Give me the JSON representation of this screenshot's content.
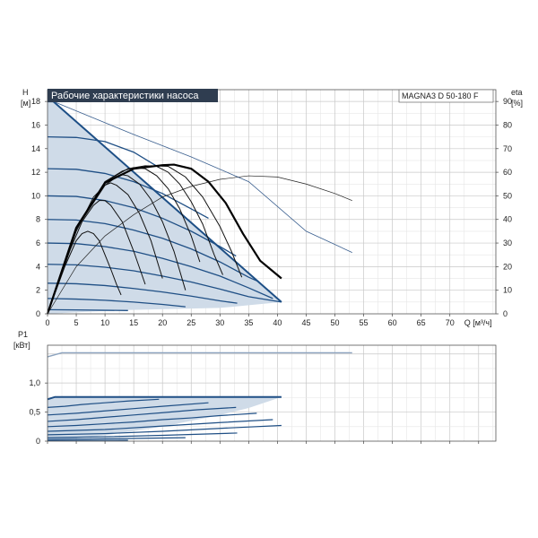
{
  "chart_data": [
    {
      "type": "line",
      "panel": "head",
      "title": "Рабочие характеристики насоса",
      "model": "MAGNA3 D 50-180 F",
      "ylabel": "H",
      "yunit": "[м]",
      "y2label": "eta",
      "y2unit": "[%]",
      "xlabel": "Q [м³/ч]",
      "xlim": [
        0,
        78
      ],
      "ylim": [
        0,
        19
      ],
      "y2lim": [
        0,
        95
      ],
      "xticks": [
        0,
        5,
        10,
        15,
        20,
        25,
        30,
        35,
        40,
        45,
        50,
        55,
        60,
        65,
        70
      ],
      "xtick_labels": [
        "0",
        "5",
        "10",
        "15",
        "20",
        "25",
        "30",
        "35",
        "40",
        "45",
        "50",
        "55",
        "60",
        "65",
        "70"
      ],
      "xunit_label": "Q [м³/ч]",
      "yticks": [
        0,
        2,
        4,
        6,
        8,
        10,
        12,
        14,
        16,
        18
      ],
      "ytick_labels": [
        "0",
        "2",
        "4",
        "6",
        "8",
        "10",
        "12",
        "14",
        "16",
        "18"
      ],
      "y2ticks": [
        0,
        10,
        20,
        30,
        40,
        50,
        60,
        70,
        80,
        90
      ],
      "y2tick_labels": [
        "0",
        "10",
        "20",
        "30",
        "40",
        "50",
        "60",
        "70",
        "80",
        "90"
      ],
      "grid": true,
      "envelope": [
        [
          0,
          18
        ],
        [
          1,
          18
        ],
        [
          40.7,
          1.0
        ],
        [
          30,
          0.5
        ],
        [
          12,
          0.3
        ],
        [
          0,
          0
        ]
      ],
      "series_pump_curves": [
        {
          "values": [
            [
              0,
              18
            ],
            [
              1,
              18
            ],
            [
              40.7,
              1.0
            ]
          ]
        },
        {
          "values": [
            [
              0,
              15
            ],
            [
              5,
              14.95
            ],
            [
              10,
              14.6
            ],
            [
              15,
              13.7
            ],
            [
              19.4,
              12.4
            ]
          ]
        },
        {
          "values": [
            [
              0,
              12.3
            ],
            [
              5,
              12.25
            ],
            [
              10,
              11.9
            ],
            [
              15,
              11.2
            ],
            [
              20,
              10.2
            ],
            [
              25,
              8.9
            ],
            [
              28,
              8.1
            ]
          ]
        },
        {
          "values": [
            [
              0,
              10.0
            ],
            [
              5,
              9.95
            ],
            [
              10,
              9.6
            ],
            [
              15,
              9.0
            ],
            [
              20,
              8.1
            ],
            [
              25,
              7.0
            ],
            [
              30,
              5.7
            ],
            [
              32.8,
              4.9
            ]
          ]
        },
        {
          "values": [
            [
              0,
              8.0
            ],
            [
              5,
              7.95
            ],
            [
              10,
              7.65
            ],
            [
              15,
              7.1
            ],
            [
              20,
              6.4
            ],
            [
              25,
              5.5
            ],
            [
              30,
              4.4
            ],
            [
              35,
              3.1
            ],
            [
              36.4,
              2.8
            ]
          ]
        },
        {
          "values": [
            [
              0,
              6.0
            ],
            [
              5,
              5.95
            ],
            [
              10,
              5.7
            ],
            [
              15,
              5.3
            ],
            [
              20,
              4.7
            ],
            [
              25,
              4.0
            ],
            [
              30,
              3.2
            ],
            [
              35,
              2.2
            ],
            [
              39.2,
              1.3
            ]
          ]
        },
        {
          "values": [
            [
              0,
              4.2
            ],
            [
              5,
              4.15
            ],
            [
              10,
              3.95
            ],
            [
              15,
              3.65
            ],
            [
              20,
              3.2
            ],
            [
              25,
              2.7
            ],
            [
              30,
              2.1
            ],
            [
              35,
              1.45
            ],
            [
              40.7,
              1.0
            ]
          ]
        },
        {
          "values": [
            [
              0,
              2.6
            ],
            [
              5,
              2.55
            ],
            [
              10,
              2.4
            ],
            [
              15,
              2.15
            ],
            [
              20,
              1.85
            ],
            [
              25,
              1.5
            ],
            [
              30,
              1.1
            ],
            [
              33,
              0.9
            ]
          ]
        },
        {
          "values": [
            [
              0,
              1.3
            ],
            [
              5,
              1.25
            ],
            [
              10,
              1.15
            ],
            [
              15,
              1.0
            ],
            [
              20,
              0.8
            ],
            [
              24,
              0.6
            ]
          ]
        },
        {
          "values": [
            [
              0,
              0.35
            ],
            [
              5,
              0.33
            ],
            [
              10,
              0.3
            ],
            [
              14,
              0.28
            ]
          ]
        }
      ],
      "series_efficiency": [
        {
          "values": [
            [
              0,
              0
            ],
            [
              3,
              4
            ],
            [
              5,
              6.2
            ],
            [
              6,
              6.8
            ],
            [
              7,
              7.0
            ],
            [
              8,
              6.8
            ],
            [
              9,
              6.2
            ],
            [
              10,
              5.0
            ],
            [
              11,
              3.8
            ],
            [
              12,
              2.5
            ],
            [
              12.8,
              1.6
            ]
          ]
        },
        {
          "values": [
            [
              0,
              0
            ],
            [
              4,
              5.5
            ],
            [
              6,
              7.8
            ],
            [
              8,
              9.2
            ],
            [
              9,
              9.6
            ],
            [
              10,
              9.6
            ],
            [
              11,
              9.2
            ],
            [
              13,
              7.8
            ],
            [
              15,
              5.3
            ],
            [
              17,
              2.5
            ]
          ]
        },
        {
          "values": [
            [
              0,
              0
            ],
            [
              5,
              7.0
            ],
            [
              8,
              9.9
            ],
            [
              10,
              10.9
            ],
            [
              11,
              11.1
            ],
            [
              12,
              10.9
            ],
            [
              14,
              10.1
            ],
            [
              16,
              8.5
            ],
            [
              18,
              6.2
            ],
            [
              20,
              3.0
            ]
          ]
        },
        {
          "values": [
            [
              0,
              0
            ],
            [
              5,
              7.2
            ],
            [
              10,
              10.9
            ],
            [
              12,
              11.6
            ],
            [
              13,
              11.8
            ],
            [
              14,
              11.7
            ],
            [
              16,
              11.0
            ],
            [
              18,
              9.7
            ],
            [
              20,
              7.8
            ],
            [
              22,
              5.3
            ],
            [
              24,
              2.0
            ]
          ]
        },
        {
          "values": [
            [
              0,
              0
            ],
            [
              5,
              7.3
            ],
            [
              10,
              11.2
            ],
            [
              13,
              12.1
            ],
            [
              15,
              12.4
            ],
            [
              17,
              12.3
            ],
            [
              19,
              11.7
            ],
            [
              21,
              10.6
            ],
            [
              23,
              8.9
            ],
            [
              25,
              6.6
            ],
            [
              26.5,
              4.4
            ]
          ]
        },
        {
          "values": [
            [
              0,
              0
            ],
            [
              5,
              7.3
            ],
            [
              10,
              11.2
            ],
            [
              14,
              12.3
            ],
            [
              17,
              12.55
            ],
            [
              19,
              12.5
            ],
            [
              21,
              12.0
            ],
            [
              23,
              11.0
            ],
            [
              25,
              9.5
            ],
            [
              27,
              7.6
            ],
            [
              29,
              5.0
            ],
            [
              30.5,
              3.3
            ]
          ]
        },
        {
          "values": [
            [
              0,
              0
            ],
            [
              5,
              7.3
            ],
            [
              10,
              11.2
            ],
            [
              15,
              12.3
            ],
            [
              18,
              12.55
            ],
            [
              21,
              12.5
            ],
            [
              24,
              11.6
            ],
            [
              27,
              9.9
            ],
            [
              30,
              7.4
            ],
            [
              32,
              5.3
            ],
            [
              33.8,
              3.1
            ]
          ]
        }
      ],
      "series_efficiency_max": {
        "values": [
          [
            0,
            0
          ],
          [
            5,
            7.3
          ],
          [
            10,
            11.1
          ],
          [
            15,
            12.3
          ],
          [
            20,
            12.6
          ],
          [
            22,
            12.65
          ],
          [
            25,
            12.3
          ],
          [
            28,
            11.2
          ],
          [
            31,
            9.4
          ],
          [
            34,
            6.8
          ],
          [
            37,
            4.5
          ],
          [
            40.7,
            3.0
          ]
        ]
      },
      "series_eta_curve": {
        "values": [
          [
            0,
            0
          ],
          [
            5,
            20
          ],
          [
            10,
            33
          ],
          [
            15,
            42
          ],
          [
            20,
            49.5
          ],
          [
            25,
            54
          ],
          [
            30,
            57
          ],
          [
            35,
            58.5
          ],
          [
            40,
            58
          ],
          [
            45,
            55
          ],
          [
            50,
            51
          ],
          [
            53,
            48
          ]
        ]
      },
      "series_diagonal": {
        "values": [
          [
            1,
            90
          ],
          [
            15,
            76
          ],
          [
            25,
            66.5
          ],
          [
            35,
            56
          ],
          [
            45,
            35
          ],
          [
            53,
            26
          ]
        ]
      }
    },
    {
      "type": "line",
      "panel": "power",
      "ylabel": "P1",
      "yunit": "[кВт]",
      "ylim": [
        0,
        1.65
      ],
      "yticks": [
        0,
        0.5,
        1.0
      ],
      "ytick_labels": [
        "0",
        "0,5",
        "1,0"
      ],
      "xlim": [
        0,
        78
      ],
      "grid": true,
      "envelope_power": [
        [
          0,
          0.72
        ],
        [
          1.3,
          0.76
        ],
        [
          40.7,
          0.76
        ],
        [
          35,
          0.57
        ],
        [
          30,
          0.45
        ],
        [
          20,
          0.25
        ],
        [
          10,
          0.1
        ],
        [
          0,
          0
        ]
      ],
      "series_power_curves": [
        {
          "values": [
            [
              0,
              0.72
            ],
            [
              1.3,
              0.76
            ],
            [
              40.7,
              0.76
            ]
          ]
        },
        {
          "values": [
            [
              0,
              0.58
            ],
            [
              3,
              0.6
            ],
            [
              6,
              0.63
            ],
            [
              10,
              0.66
            ],
            [
              14,
              0.69
            ],
            [
              19.4,
              0.72
            ]
          ]
        },
        {
          "values": [
            [
              0,
              0.45
            ],
            [
              5,
              0.48
            ],
            [
              10,
              0.52
            ],
            [
              15,
              0.56
            ],
            [
              20,
              0.6
            ],
            [
              28,
              0.66
            ]
          ]
        },
        {
          "values": [
            [
              0,
              0.34
            ],
            [
              5,
              0.37
            ],
            [
              10,
              0.41
            ],
            [
              15,
              0.45
            ],
            [
              20,
              0.49
            ],
            [
              26,
              0.54
            ],
            [
              32.8,
              0.58
            ]
          ]
        },
        {
          "values": [
            [
              0,
              0.25
            ],
            [
              5,
              0.27
            ],
            [
              10,
              0.3
            ],
            [
              15,
              0.33
            ],
            [
              20,
              0.37
            ],
            [
              25,
              0.4
            ],
            [
              30,
              0.44
            ],
            [
              36.4,
              0.48
            ]
          ]
        },
        {
          "values": [
            [
              0,
              0.17
            ],
            [
              10,
              0.2
            ],
            [
              20,
              0.26
            ],
            [
              30,
              0.32
            ],
            [
              39.2,
              0.37
            ]
          ]
        },
        {
          "values": [
            [
              0,
              0.11
            ],
            [
              10,
              0.13
            ],
            [
              20,
              0.17
            ],
            [
              30,
              0.22
            ],
            [
              40.7,
              0.27
            ]
          ]
        },
        {
          "values": [
            [
              0,
              0.06
            ],
            [
              10,
              0.075
            ],
            [
              20,
              0.1
            ],
            [
              33,
              0.14
            ]
          ]
        },
        {
          "values": [
            [
              0,
              0.03
            ],
            [
              10,
              0.04
            ],
            [
              24,
              0.06
            ]
          ]
        },
        {
          "values": [
            [
              0,
              0.01
            ],
            [
              14,
              0.015
            ]
          ]
        }
      ],
      "series_power_max": {
        "values": [
          [
            0,
            1.45
          ],
          [
            2.5,
            1.52
          ],
          [
            53,
            1.52
          ]
        ]
      }
    }
  ]
}
